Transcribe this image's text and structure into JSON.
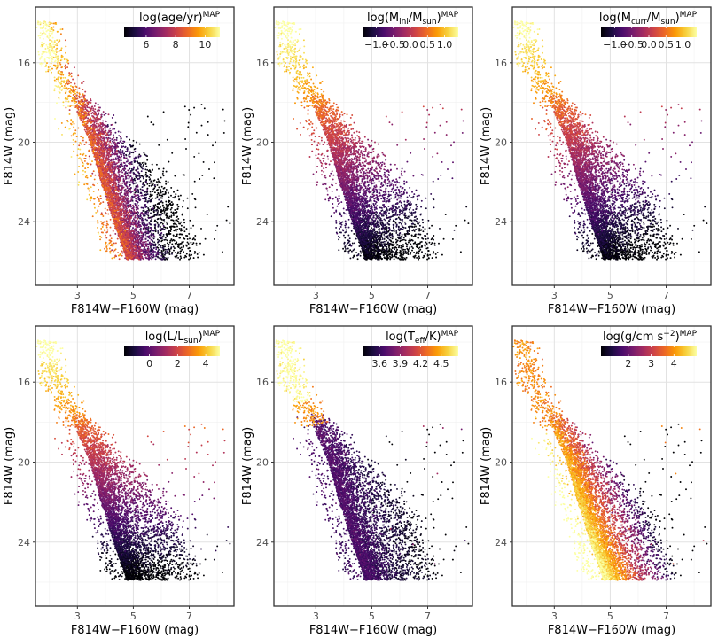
{
  "chart_data": {
    "type": "scatter",
    "layout": "2x3 grid of color-mapped color-magnitude diagrams",
    "shared_axes": {
      "xlabel": "F814W−F160W (mag)",
      "ylabel": "F814W (mag)",
      "xlim": [
        1.5,
        8.6
      ],
      "ylim": [
        27.2,
        13.2
      ],
      "y_inverted": true,
      "xticks": [
        3,
        5,
        7
      ],
      "xtick_labels": [
        "3",
        "5",
        "7"
      ],
      "yticks": [
        16,
        20,
        24
      ],
      "ytick_labels": [
        "16",
        "20",
        "24"
      ],
      "grid": true
    },
    "colormap": {
      "name": "inferno",
      "stops": [
        "#000004",
        "#1b0c41",
        "#4a0c6b",
        "#781c6d",
        "#a52c60",
        "#cf4446",
        "#ed6925",
        "#fb9b06",
        "#f7d13d",
        "#fcffa4"
      ]
    },
    "panels": [
      {
        "id": "age",
        "title": "log(age/yr)",
        "title_parts": [
          {
            "t": "log(age/yr)"
          },
          {
            "t": "MAP",
            "sup": true
          }
        ],
        "colorbar_ticks": [
          6,
          8,
          10
        ],
        "colorbar_tick_labels": [
          "6",
          "8",
          "10"
        ],
        "crange": [
          4.5,
          11
        ],
        "color_trend": "young (dark) on the red, faint side; old (yellow) along the blue edge and at the top"
      },
      {
        "id": "mini",
        "title": "log(Mini/Msun)",
        "title_parts": [
          {
            "t": "log(M"
          },
          {
            "t": "ini",
            "sub": true
          },
          {
            "t": "/M"
          },
          {
            "t": "sun",
            "sub": true
          },
          {
            "t": ")"
          },
          {
            "t": "MAP",
            "sup": true
          }
        ],
        "colorbar_ticks": [
          -1.0,
          -0.5,
          0.0,
          0.5,
          1.0
        ],
        "colorbar_tick_labels": [
          "−1.0",
          "−0.5",
          "0.0",
          "0.5",
          "1.0"
        ],
        "crange": [
          -1.4,
          1.4
        ],
        "color_trend": "bright stars massive (yellow), faint stars low mass (black)"
      },
      {
        "id": "mcurr",
        "title": "log(Mcurr/Msun)",
        "title_parts": [
          {
            "t": "log(M"
          },
          {
            "t": "curr",
            "sub": true
          },
          {
            "t": "/M"
          },
          {
            "t": "sun",
            "sub": true
          },
          {
            "t": ")"
          },
          {
            "t": "MAP",
            "sup": true
          }
        ],
        "colorbar_ticks": [
          -1.0,
          -0.5,
          0.0,
          0.5,
          1.0
        ],
        "colorbar_tick_labels": [
          "−1.0",
          "−0.5",
          "0.0",
          "0.5",
          "1.0"
        ],
        "crange": [
          -1.4,
          1.4
        ],
        "color_trend": "bright stars massive (yellow), faint stars low mass (black)"
      },
      {
        "id": "lum",
        "title": "log(L/Lsun)",
        "title_parts": [
          {
            "t": "log(L/L"
          },
          {
            "t": "sun",
            "sub": true
          },
          {
            "t": ")"
          },
          {
            "t": "MAP",
            "sup": true
          }
        ],
        "colorbar_ticks": [
          0,
          2,
          4
        ],
        "colorbar_tick_labels": [
          "0",
          "2",
          "4"
        ],
        "crange": [
          -1.8,
          5.0
        ],
        "color_trend": "luminosity tracks magnitude: bright yellow at top, black at bottom"
      },
      {
        "id": "teff",
        "title": "log(Teff/K)",
        "title_parts": [
          {
            "t": "log(T"
          },
          {
            "t": "eff",
            "sub": true
          },
          {
            "t": "/K)"
          },
          {
            "t": "MAP",
            "sup": true
          }
        ],
        "colorbar_ticks": [
          3.6,
          3.9,
          4.2,
          4.5
        ],
        "colorbar_tick_labels": [
          "3.6",
          "3.9",
          "4.2",
          "4.5"
        ],
        "crange": [
          3.35,
          4.75
        ],
        "color_trend": "mostly cool (dark purple/black); hot (orange/yellow) only on the bright blue plume"
      },
      {
        "id": "logg",
        "title": "log(g/cm s^-2)",
        "title_parts": [
          {
            "t": "log(g/cm s"
          },
          {
            "t": "−2",
            "sup": true
          },
          {
            "t": ")"
          },
          {
            "t": "MAP",
            "sup": true
          }
        ],
        "colorbar_ticks": [
          2,
          3,
          4
        ],
        "colorbar_tick_labels": [
          "2",
          "3",
          "4"
        ],
        "crange": [
          0.8,
          5.0
        ],
        "color_trend": "high gravity (yellow) on the blue edge, low gravity (dark) on the red side"
      }
    ],
    "point_cloud": {
      "description": "several thousand stars per panel; same positions in every panel",
      "n_points": 5200,
      "ridge_color_vs_mag": [
        [
          14.0,
          1.95
        ],
        [
          16.0,
          2.35
        ],
        [
          18.0,
          3.1
        ],
        [
          20.0,
          3.7
        ],
        [
          22.0,
          4.1
        ],
        [
          24.0,
          4.55
        ],
        [
          25.8,
          5.0
        ]
      ],
      "mag_range_main": [
        17.5,
        26.0
      ],
      "bright_plume_mag_range": [
        13.8,
        18.0
      ]
    }
  }
}
